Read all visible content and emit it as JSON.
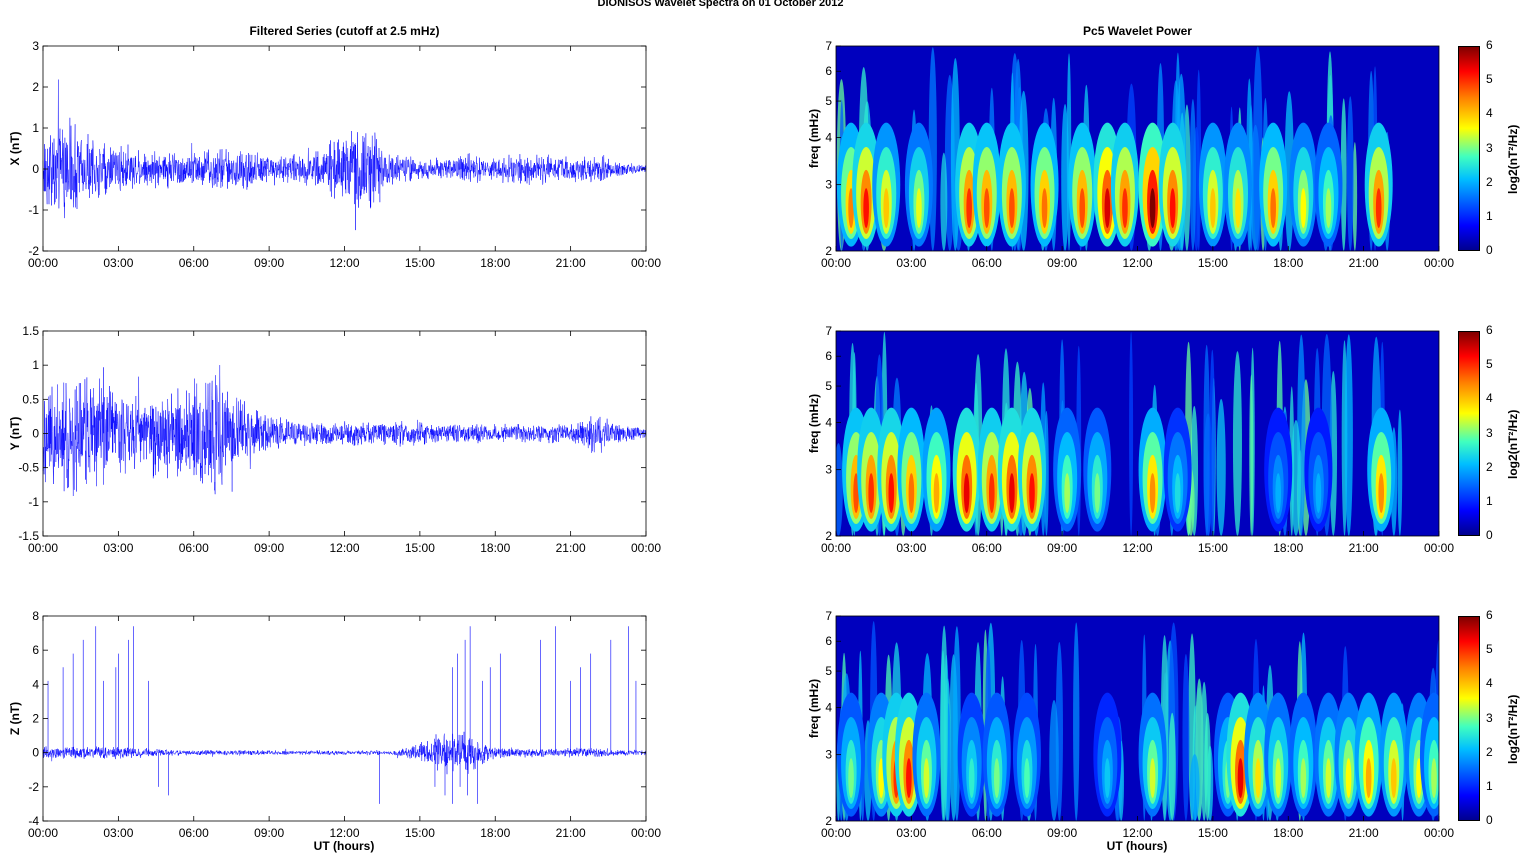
{
  "figure": {
    "title": "DIONISOS Wavelet Spectra on 01 October   2012",
    "left_title": "Filtered Series (cutoff at 2.5 mHz)",
    "right_title": "Pc5 Wavelet Power",
    "xlabel": "UT (hours)",
    "x_ticks": [
      "00:00",
      "03:00",
      "06:00",
      "09:00",
      "12:00",
      "15:00",
      "18:00",
      "21:00",
      "00:00"
    ]
  },
  "colorbar": {
    "label": "log2(nT²/Hz)",
    "ticks": [
      "0",
      "1",
      "2",
      "3",
      "4",
      "5",
      "6"
    ],
    "range": [
      0,
      6
    ],
    "colormap": "jet"
  },
  "chart_data": [
    {
      "type": "line",
      "component": "X",
      "ylabel": "X (nT)",
      "ylim": [
        -2,
        3
      ],
      "y_ticks": [
        "3",
        "2",
        "1",
        "0",
        "-1",
        "-2"
      ],
      "xlim_hours": [
        0,
        24
      ],
      "series_color": "#0000ff",
      "envelope": {
        "hours": [
          0,
          1,
          2,
          3,
          4,
          5,
          6,
          7,
          8,
          9,
          10,
          11,
          12,
          13,
          14,
          15,
          16,
          17,
          18,
          19,
          20,
          21,
          22,
          23,
          24
        ],
        "amplitude": [
          0.9,
          1.5,
          0.8,
          0.7,
          0.5,
          0.5,
          0.5,
          0.6,
          0.6,
          0.4,
          0.4,
          0.5,
          1.0,
          1.2,
          0.4,
          0.3,
          0.3,
          0.4,
          0.3,
          0.4,
          0.4,
          0.3,
          0.4,
          0.2,
          0.1
        ]
      }
    },
    {
      "type": "line",
      "component": "Y",
      "ylabel": "Y (nT)",
      "ylim": [
        -1.5,
        1.5
      ],
      "y_ticks": [
        "1.5",
        "1",
        "0.5",
        "0",
        "-0.5",
        "-1",
        "-1.5"
      ],
      "xlim_hours": [
        0,
        24
      ],
      "series_color": "#0000ff",
      "envelope": {
        "hours": [
          0,
          1,
          2,
          3,
          4,
          5,
          6,
          7,
          8,
          9,
          10,
          11,
          12,
          13,
          14,
          15,
          16,
          17,
          18,
          19,
          20,
          21,
          22,
          23,
          24
        ],
        "amplitude": [
          0.7,
          1.1,
          0.9,
          0.7,
          0.6,
          0.7,
          0.9,
          1.0,
          0.5,
          0.3,
          0.2,
          0.2,
          0.2,
          0.2,
          0.2,
          0.2,
          0.15,
          0.15,
          0.15,
          0.15,
          0.15,
          0.15,
          0.3,
          0.15,
          0.1
        ]
      }
    },
    {
      "type": "line",
      "component": "Z",
      "ylabel": "Z (nT)",
      "ylim": [
        -4,
        8
      ],
      "y_ticks": [
        "8",
        "6",
        "4",
        "2",
        "0",
        "-2",
        "-4"
      ],
      "xlim_hours": [
        0,
        24
      ],
      "series_color": "#0000ff",
      "envelope": {
        "hours": [
          0,
          1,
          2,
          3,
          4,
          5,
          6,
          7,
          8,
          9,
          10,
          11,
          12,
          13,
          14,
          15,
          16,
          17,
          18,
          19,
          20,
          21,
          22,
          23,
          24
        ],
        "amplitude": [
          0.4,
          0.4,
          0.4,
          0.4,
          0.3,
          0.2,
          0.2,
          0.15,
          0.2,
          0.15,
          0.15,
          0.15,
          0.15,
          0.15,
          0.15,
          0.6,
          1.5,
          1.2,
          0.4,
          0.3,
          0.3,
          0.3,
          0.3,
          0.2,
          0.2
        ]
      },
      "spike_hours": [
        0.2,
        0.8,
        1.2,
        1.6,
        2.1,
        2.4,
        2.9,
        3.0,
        3.4,
        3.6,
        4.2,
        16.3,
        16.5,
        16.8,
        17.0,
        17.5,
        17.8,
        18.2,
        19.8,
        20.4,
        21.0,
        21.4,
        21.8,
        22.6,
        23.3,
        23.6
      ],
      "dip_hours": [
        4.6,
        5.0,
        13.4,
        15.6,
        16.0,
        16.3,
        16.6,
        16.9,
        17.3
      ]
    },
    {
      "type": "heatmap",
      "component": "X",
      "ylabel": "freq (mHz)",
      "y_scale": "log",
      "ylim": [
        2,
        7
      ],
      "y_ticks": [
        "7",
        "6",
        "5",
        "4",
        "3",
        "2"
      ],
      "xlim_hours": [
        0,
        24
      ],
      "data_until_hour": 22.6,
      "hot_spots": [
        {
          "hour": 0.6,
          "power": 4.5
        },
        {
          "hour": 1.2,
          "power": 5.2
        },
        {
          "hour": 2.0,
          "power": 4.0
        },
        {
          "hour": 3.3,
          "power": 3.5
        },
        {
          "hour": 5.3,
          "power": 5.0
        },
        {
          "hour": 6.0,
          "power": 4.8
        },
        {
          "hour": 7.0,
          "power": 4.8
        },
        {
          "hour": 8.3,
          "power": 4.6
        },
        {
          "hour": 9.8,
          "power": 4.8
        },
        {
          "hour": 10.8,
          "power": 5.5
        },
        {
          "hour": 11.5,
          "power": 5.0
        },
        {
          "hour": 12.6,
          "power": 6.0
        },
        {
          "hour": 13.4,
          "power": 5.2
        },
        {
          "hour": 15.0,
          "power": 4.0
        },
        {
          "hour": 16.0,
          "power": 3.8
        },
        {
          "hour": 17.4,
          "power": 4.6
        },
        {
          "hour": 18.6,
          "power": 3.6
        },
        {
          "hour": 19.6,
          "power": 3.2
        },
        {
          "hour": 21.6,
          "power": 5.0
        }
      ]
    },
    {
      "type": "heatmap",
      "component": "Y",
      "ylabel": "freq (mHz)",
      "y_scale": "log",
      "ylim": [
        2,
        7
      ],
      "y_ticks": [
        "7",
        "6",
        "5",
        "4",
        "3",
        "2"
      ],
      "xlim_hours": [
        0,
        24
      ],
      "data_until_hour": 22.6,
      "hot_spots": [
        {
          "hour": 0.8,
          "power": 4.8
        },
        {
          "hour": 1.4,
          "power": 5.0
        },
        {
          "hour": 2.2,
          "power": 5.2
        },
        {
          "hour": 3.0,
          "power": 4.6
        },
        {
          "hour": 4.0,
          "power": 4.2
        },
        {
          "hour": 5.2,
          "power": 5.4
        },
        {
          "hour": 6.2,
          "power": 5.0
        },
        {
          "hour": 7.0,
          "power": 5.4
        },
        {
          "hour": 7.8,
          "power": 5.2
        },
        {
          "hour": 9.2,
          "power": 3.2
        },
        {
          "hour": 10.4,
          "power": 3.0
        },
        {
          "hour": 12.6,
          "power": 4.4
        },
        {
          "hour": 13.6,
          "power": 2.4
        },
        {
          "hour": 17.6,
          "power": 2.0
        },
        {
          "hour": 19.2,
          "power": 2.0
        },
        {
          "hour": 21.7,
          "power": 4.4
        }
      ]
    },
    {
      "type": "heatmap",
      "component": "Z",
      "ylabel": "freq (mHz)",
      "y_scale": "log",
      "ylim": [
        2,
        7
      ],
      "y_ticks": [
        "7",
        "6",
        "5",
        "4",
        "3",
        "2"
      ],
      "xlim_hours": [
        0,
        24
      ],
      "data_until_hour": 24,
      "hot_spots": [
        {
          "hour": 0.6,
          "power": 3.0
        },
        {
          "hour": 1.8,
          "power": 3.6
        },
        {
          "hour": 2.4,
          "power": 5.0
        },
        {
          "hour": 2.9,
          "power": 5.2
        },
        {
          "hour": 3.6,
          "power": 3.4
        },
        {
          "hour": 5.4,
          "power": 2.6
        },
        {
          "hour": 6.4,
          "power": 3.0
        },
        {
          "hour": 7.6,
          "power": 2.8
        },
        {
          "hour": 10.8,
          "power": 2.2
        },
        {
          "hour": 12.6,
          "power": 3.4
        },
        {
          "hour": 15.6,
          "power": 3.0
        },
        {
          "hour": 16.1,
          "power": 5.4
        },
        {
          "hour": 16.8,
          "power": 3.8
        },
        {
          "hour": 17.6,
          "power": 3.4
        },
        {
          "hour": 18.6,
          "power": 3.2
        },
        {
          "hour": 19.6,
          "power": 3.4
        },
        {
          "hour": 20.4,
          "power": 3.6
        },
        {
          "hour": 21.2,
          "power": 4.2
        },
        {
          "hour": 22.2,
          "power": 4.0
        },
        {
          "hour": 23.2,
          "power": 3.6
        },
        {
          "hour": 23.8,
          "power": 3.2
        }
      ]
    }
  ]
}
